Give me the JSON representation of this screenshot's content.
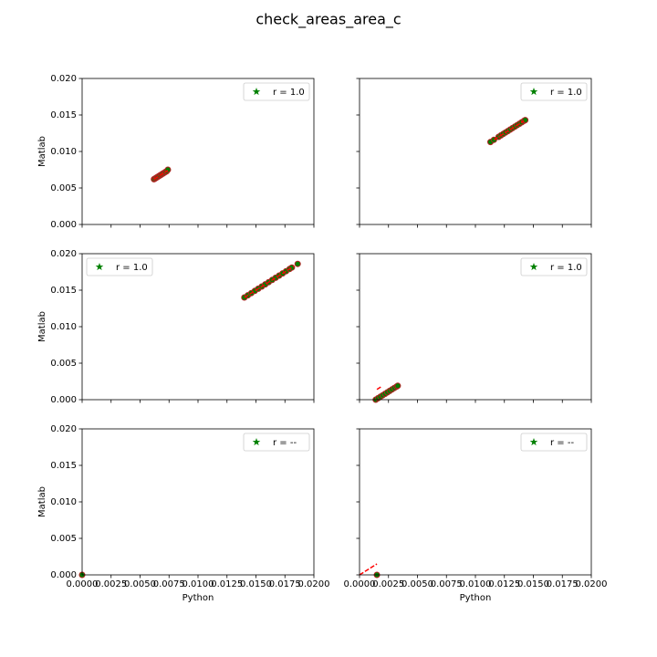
{
  "title": "check_areas_area_c",
  "chart_data": [
    {
      "type": "scatter",
      "legend": "upper right",
      "ylabel": "Matlab",
      "xlim": [
        0,
        0.02
      ],
      "ylim": [
        0,
        0.02
      ],
      "xticks": [
        0,
        0.0025,
        0.005,
        0.0075,
        0.01,
        0.0125,
        0.015,
        0.0175,
        0.02
      ],
      "yticks": [
        {
          "value": 0,
          "label": "0.000"
        },
        {
          "value": 0.005,
          "label": "0.005"
        },
        {
          "value": 0.01,
          "label": "0.010"
        },
        {
          "value": 0.015,
          "label": "0.015"
        },
        {
          "value": 0.02,
          "label": "0.020"
        }
      ],
      "series": [
        {
          "name": "r = 1.0",
          "color": "green",
          "edgecolor": "#b22222",
          "x": [
            0.0062,
            0.0063,
            0.0064,
            0.0065,
            0.0066,
            0.0067,
            0.0068,
            0.0069,
            0.007,
            0.0071,
            0.0072,
            0.0073,
            0.0074
          ],
          "y": [
            0.0062,
            0.0063,
            0.0064,
            0.0065,
            0.0066,
            0.0067,
            0.0068,
            0.0069,
            0.007,
            0.0071,
            0.0072,
            0.0073,
            0.0075
          ]
        }
      ],
      "fit_line": {
        "color": "red",
        "x": [
          0.0062,
          0.0074
        ],
        "y": [
          0.0062,
          0.0074
        ]
      }
    },
    {
      "type": "scatter",
      "legend": "upper right",
      "xlim": [
        0,
        0.02
      ],
      "ylim": [
        0,
        0.02
      ],
      "xticks": [
        0,
        0.0025,
        0.005,
        0.0075,
        0.01,
        0.0125,
        0.015,
        0.0175,
        0.02
      ],
      "yticks": [
        0,
        0.005,
        0.01,
        0.015,
        0.02
      ],
      "series": [
        {
          "name": "r = 1.0",
          "color": "green",
          "edgecolor": "#b22222",
          "x": [
            0.0113,
            0.0116,
            0.012,
            0.0122,
            0.0124,
            0.0126,
            0.0128,
            0.013,
            0.0132,
            0.0134,
            0.0136,
            0.0138,
            0.014,
            0.0142,
            0.0143
          ],
          "y": [
            0.0113,
            0.0116,
            0.012,
            0.0122,
            0.0124,
            0.0126,
            0.0128,
            0.013,
            0.0132,
            0.0134,
            0.0136,
            0.0138,
            0.014,
            0.0142,
            0.0143
          ]
        }
      ],
      "fit_line": {
        "color": "red",
        "x": [
          0.0116,
          0.0142
        ],
        "y": [
          0.0116,
          0.0142
        ]
      }
    },
    {
      "type": "scatter",
      "legend": "upper left",
      "ylabel": "Matlab",
      "xlim": [
        0,
        0.02
      ],
      "ylim": [
        0,
        0.02
      ],
      "xticks": [
        0,
        0.0025,
        0.005,
        0.0075,
        0.01,
        0.0125,
        0.015,
        0.0175,
        0.02
      ],
      "yticks": [
        {
          "value": 0,
          "label": "0.000"
        },
        {
          "value": 0.005,
          "label": "0.005"
        },
        {
          "value": 0.01,
          "label": "0.010"
        },
        {
          "value": 0.015,
          "label": "0.015"
        },
        {
          "value": 0.02,
          "label": "0.020"
        }
      ],
      "series": [
        {
          "name": "r = 1.0",
          "color": "green",
          "edgecolor": "#b22222",
          "x": [
            0.014,
            0.0143,
            0.0146,
            0.0149,
            0.0152,
            0.0155,
            0.0158,
            0.0161,
            0.0164,
            0.0167,
            0.017,
            0.0173,
            0.0176,
            0.0179,
            0.0181,
            0.0186
          ],
          "y": [
            0.014,
            0.0143,
            0.0146,
            0.0149,
            0.0152,
            0.0155,
            0.0158,
            0.0161,
            0.0164,
            0.0167,
            0.017,
            0.0173,
            0.0176,
            0.0179,
            0.0181,
            0.0186
          ]
        }
      ],
      "fit_line": {
        "color": "red",
        "x": [
          0.014,
          0.0183
        ],
        "y": [
          0.014,
          0.0183
        ]
      }
    },
    {
      "type": "scatter",
      "legend": "upper right",
      "xlim": [
        0,
        0.02
      ],
      "ylim": [
        0,
        0.02
      ],
      "xticks": [
        0,
        0.0025,
        0.005,
        0.0075,
        0.01,
        0.0125,
        0.015,
        0.0175,
        0.02
      ],
      "yticks": [
        0,
        0.005,
        0.01,
        0.015,
        0.02
      ],
      "series": [
        {
          "name": "r = 1.0",
          "color": "green",
          "edgecolor": "#b22222",
          "x": [
            0.0014,
            0.0016,
            0.0018,
            0.002,
            0.0022,
            0.0024,
            0.0026,
            0.0028,
            0.003,
            0.0032,
            0.0033
          ],
          "y": [
            0.0,
            0.0002,
            0.0004,
            0.0006,
            0.0008,
            0.001,
            0.0012,
            0.0014,
            0.0016,
            0.0018,
            0.0019
          ]
        }
      ],
      "fit_line": {
        "color": "red",
        "x": [
          0.0015,
          0.0019
        ],
        "y": [
          0.0014,
          0.0018
        ]
      }
    },
    {
      "type": "scatter",
      "legend": "upper right",
      "ylabel": "Matlab",
      "xlabel": "Python",
      "xlim": [
        0,
        0.02
      ],
      "ylim": [
        0,
        0.02
      ],
      "xticks": [
        {
          "value": 0,
          "label": "0.0000"
        },
        {
          "value": 0.0025,
          "label": "0.0025"
        },
        {
          "value": 0.005,
          "label": "0.0050"
        },
        {
          "value": 0.0075,
          "label": "0.0075"
        },
        {
          "value": 0.01,
          "label": "0.0100"
        },
        {
          "value": 0.0125,
          "label": "0.0125"
        },
        {
          "value": 0.015,
          "label": "0.0150"
        },
        {
          "value": 0.0175,
          "label": "0.0175"
        },
        {
          "value": 0.02,
          "label": "0.0200"
        }
      ],
      "yticks": [
        {
          "value": 0,
          "label": "0.000"
        },
        {
          "value": 0.005,
          "label": "0.005"
        },
        {
          "value": 0.01,
          "label": "0.010"
        },
        {
          "value": 0.015,
          "label": "0.015"
        },
        {
          "value": 0.02,
          "label": "0.020"
        }
      ],
      "series": [
        {
          "name": "r = --",
          "color": "green",
          "edgecolor": "#b22222",
          "x": [
            0
          ],
          "y": [
            0
          ]
        }
      ]
    },
    {
      "type": "scatter",
      "legend": "upper right",
      "xlabel": "Python",
      "xlim": [
        0,
        0.02
      ],
      "ylim": [
        0,
        0.02
      ],
      "xticks": [
        {
          "value": 0,
          "label": "0.0000"
        },
        {
          "value": 0.0025,
          "label": "0.0025"
        },
        {
          "value": 0.005,
          "label": "0.0050"
        },
        {
          "value": 0.0075,
          "label": "0.0075"
        },
        {
          "value": 0.01,
          "label": "0.0100"
        },
        {
          "value": 0.0125,
          "label": "0.0125"
        },
        {
          "value": 0.015,
          "label": "0.0150"
        },
        {
          "value": 0.0175,
          "label": "0.0175"
        },
        {
          "value": 0.02,
          "label": "0.0200"
        }
      ],
      "yticks": [
        0,
        0.005,
        0.01,
        0.015,
        0.02
      ],
      "series": [
        {
          "name": "r = --",
          "color": "green",
          "edgecolor": "#b22222",
          "x": [
            0.0015
          ],
          "y": [
            0
          ]
        }
      ],
      "fit_line": {
        "color": "red",
        "x": [
          0,
          0.0015
        ],
        "y": [
          0,
          0.0015
        ]
      }
    }
  ]
}
